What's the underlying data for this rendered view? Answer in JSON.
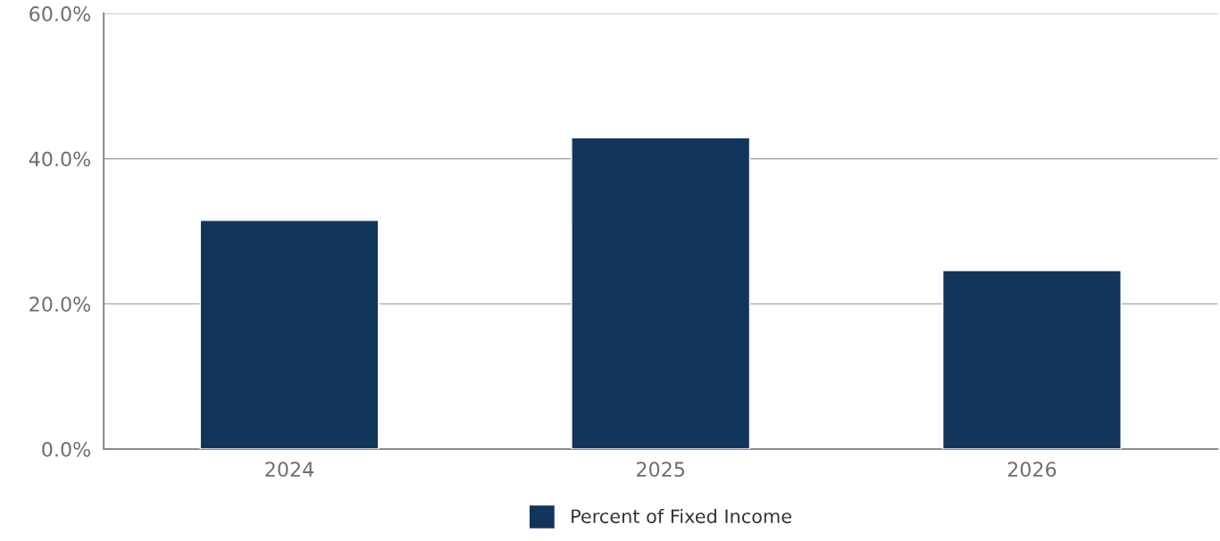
{
  "chart_data": {
    "type": "bar",
    "categories": [
      "2024",
      "2025",
      "2026"
    ],
    "series": [
      {
        "name": "Percent of Fixed Income",
        "color": "#12355b",
        "values": [
          31.5,
          42.9,
          24.6
        ]
      }
    ],
    "ylim": [
      0,
      60
    ],
    "yticks": [
      {
        "value": 0,
        "label": "0.0%"
      },
      {
        "value": 20,
        "label": "20.0%"
      },
      {
        "value": 40,
        "label": "40.0%"
      },
      {
        "value": 60,
        "label": "60.0%"
      }
    ],
    "grid": "y",
    "legend": "bottom"
  }
}
